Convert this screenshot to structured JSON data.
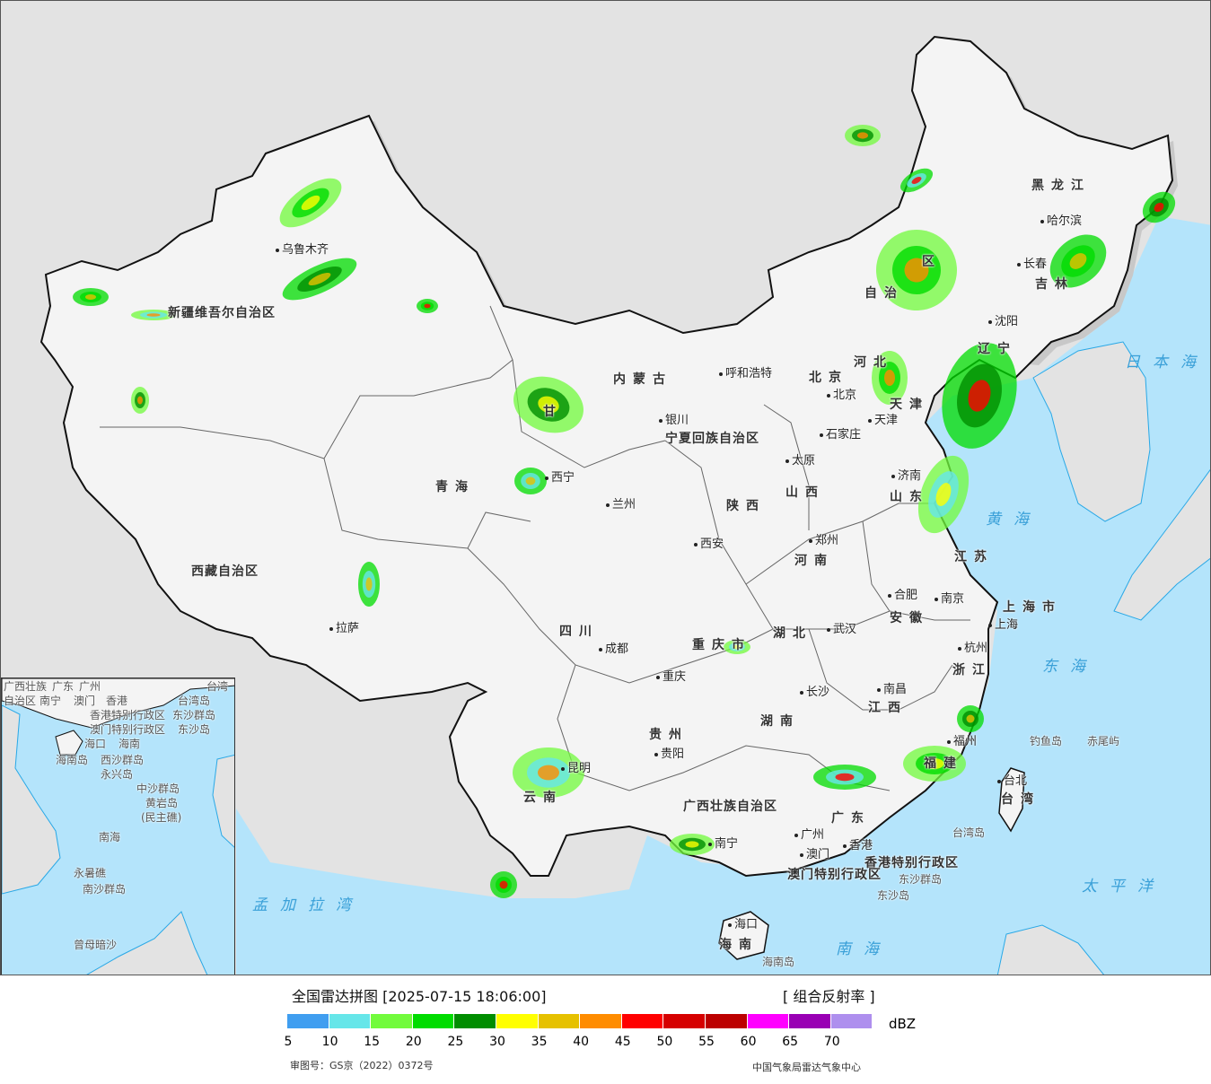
{
  "map": {
    "colors": {
      "land_other": "#e3e3e3",
      "sea": "#b4e4fb",
      "china": "#f4f4f4",
      "border": "#111111"
    },
    "provinces": [
      "新疆维吾尔自治区",
      "西藏自治区",
      "青海",
      "甘",
      "内蒙古",
      "自治",
      "区",
      "黑龙江",
      "吉林",
      "辽宁",
      "河北",
      "山西",
      "陕西",
      "宁夏回族自治区",
      "四川",
      "重庆市",
      "云南",
      "贵州",
      "广西壮族自治区",
      "广东",
      "湖南",
      "湖北",
      "河南",
      "山东",
      "江苏",
      "安徽",
      "浙江",
      "江西",
      "福建",
      "海南",
      "台湾",
      "上海市",
      "北京",
      "天津",
      "香港特别行政区",
      "澳门特别行政区"
    ],
    "cities": [
      "乌鲁木齐",
      "拉萨",
      "西宁",
      "兰州",
      "银川",
      "呼和浩特",
      "哈尔滨",
      "长春",
      "沈阳",
      "北京",
      "天津",
      "石家庄",
      "太原",
      "济南",
      "郑州",
      "西安",
      "成都",
      "重庆",
      "贵阳",
      "昆明",
      "南宁",
      "广州",
      "澳门",
      "香港",
      "长沙",
      "武汉",
      "南昌",
      "合肥",
      "南京",
      "上海",
      "杭州",
      "福州",
      "台北",
      "海口"
    ],
    "seas": [
      "日本海",
      "黄海",
      "东海",
      "太平洋",
      "南海",
      "孟加拉湾"
    ],
    "islands": [
      "钓鱼岛",
      "赤尾屿",
      "台湾岛",
      "东沙群岛",
      "东沙岛",
      "海南岛"
    ],
    "inset": {
      "labels": [
        "广西壮族",
        "自治区",
        "南宁",
        "广东",
        "广州",
        "澳门",
        "香港",
        "香港特别行政区",
        "澳门特别行政区",
        "台湾",
        "台湾岛",
        "东沙群岛",
        "东沙岛",
        "海口",
        "海南",
        "海南岛",
        "西沙群岛",
        "永兴岛",
        "中沙群岛",
        "黄岩岛",
        "(民主礁)",
        "南海",
        "永暑礁",
        "南沙群岛",
        "曾母暗沙"
      ]
    }
  },
  "legend": {
    "title": "全国雷达拼图 [2025-07-15 18:06:00]",
    "product": "[ 组合反射率 ]",
    "unit": "dBZ",
    "colors": [
      "#409ef0",
      "#66e6e9",
      "#72fb3c",
      "#00dc00",
      "#008d00",
      "#ffff00",
      "#e6c100",
      "#ff8c00",
      "#ff0000",
      "#d60000",
      "#bc0000",
      "#ff00ff",
      "#9900b4",
      "#ae8fee"
    ],
    "ticks": [
      "5",
      "10",
      "15",
      "20",
      "25",
      "30",
      "35",
      "40",
      "45",
      "50",
      "55",
      "60",
      "65",
      "70"
    ],
    "review_number": "审图号：GS京（2022）0372号",
    "organization": "中国气象局雷达气象中心"
  }
}
